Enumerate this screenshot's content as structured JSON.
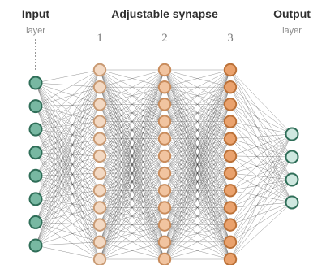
{
  "labels": {
    "input_title": "Input",
    "input_sub": "layer",
    "synapse_title": "Adjustable synapse",
    "layer_numbers": [
      "1",
      "2",
      "3"
    ],
    "output_title": "Output",
    "output_sub": "layer"
  },
  "network": {
    "input_nodes": 8,
    "hidden_layers": [
      {
        "label": "1",
        "nodes": 12,
        "fill": "#f3d9c3",
        "stroke": "#c99a73"
      },
      {
        "label": "2",
        "nodes": 12,
        "fill": "#f1c4a0",
        "stroke": "#c98c5c"
      },
      {
        "label": "3",
        "nodes": 12,
        "fill": "#eaa26d",
        "stroke": "#bb7138"
      }
    ],
    "output_nodes": 4,
    "input_color": {
      "fill": "#78b8a2",
      "stroke": "#2f6e58"
    },
    "output_color": {
      "fill": "#cfe8e0",
      "stroke": "#2f6e58"
    },
    "connection_color": "#3a3a3a"
  }
}
